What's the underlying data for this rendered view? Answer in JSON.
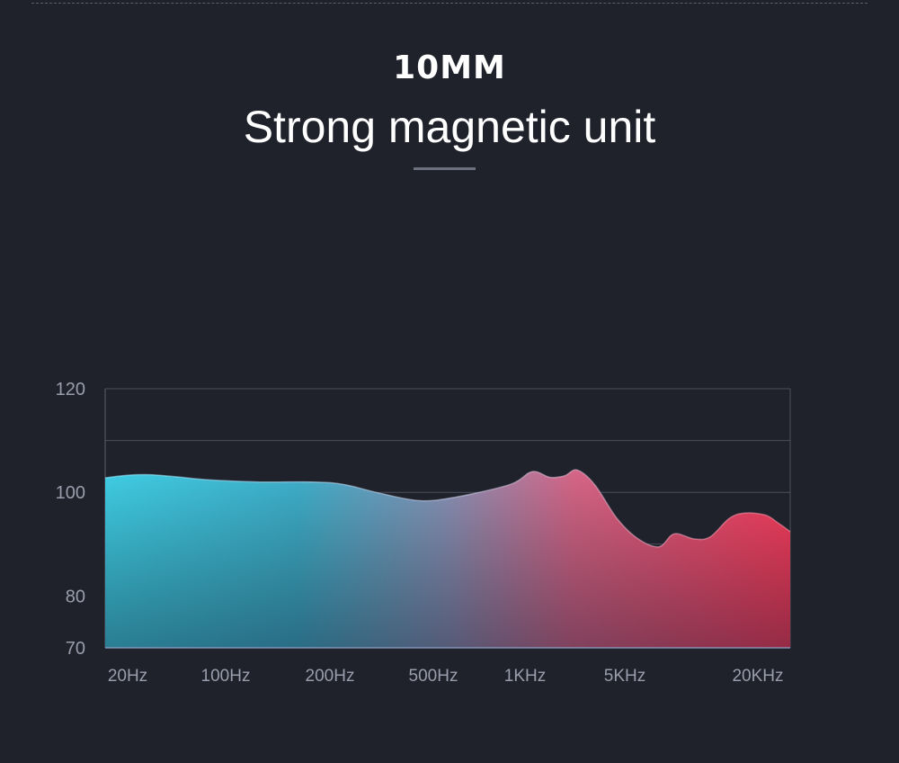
{
  "header": {
    "subtitle": "10MM",
    "title": "Strong magnetic unit"
  },
  "colors": {
    "background": "#1f212b",
    "gradient_start": "#3fd1ea",
    "gradient_end": "#ff3b5c",
    "grid": "#5c5f6e",
    "tick_label": "#9a9dab"
  },
  "chart_data": {
    "type": "area",
    "title": "",
    "xlabel": "",
    "ylabel": "",
    "x_scale": "log",
    "x_ticks": [
      "20Hz",
      "100Hz",
      "200Hz",
      "500Hz",
      "1KHz",
      "5KHz",
      "20KHz"
    ],
    "y_ticks": [
      120,
      100,
      80,
      70
    ],
    "ylim": [
      70,
      120
    ],
    "grid": true,
    "series": [
      {
        "values": [
          [
            20,
            102.8
          ],
          [
            28,
            103.3
          ],
          [
            40,
            103.4
          ],
          [
            60,
            103.0
          ],
          [
            100,
            102.4
          ],
          [
            140,
            102.0
          ],
          [
            200,
            102.0
          ],
          [
            260,
            101.5
          ],
          [
            350,
            99.9
          ],
          [
            500,
            98.4
          ],
          [
            650,
            99.0
          ],
          [
            1000,
            101.5
          ],
          [
            1300,
            104.0
          ],
          [
            1600,
            102.9
          ],
          [
            1900,
            103.2
          ],
          [
            2200,
            104.3
          ],
          [
            2700,
            101.5
          ],
          [
            3500,
            95.0
          ],
          [
            4500,
            91.0
          ],
          [
            5800,
            89.5
          ],
          [
            7000,
            92.0
          ],
          [
            9000,
            91.0
          ],
          [
            11000,
            91.4
          ],
          [
            14000,
            95.0
          ],
          [
            17000,
            96.0
          ],
          [
            22000,
            95.6
          ],
          [
            26000,
            94.0
          ],
          [
            30000,
            92.4
          ]
        ]
      }
    ]
  }
}
